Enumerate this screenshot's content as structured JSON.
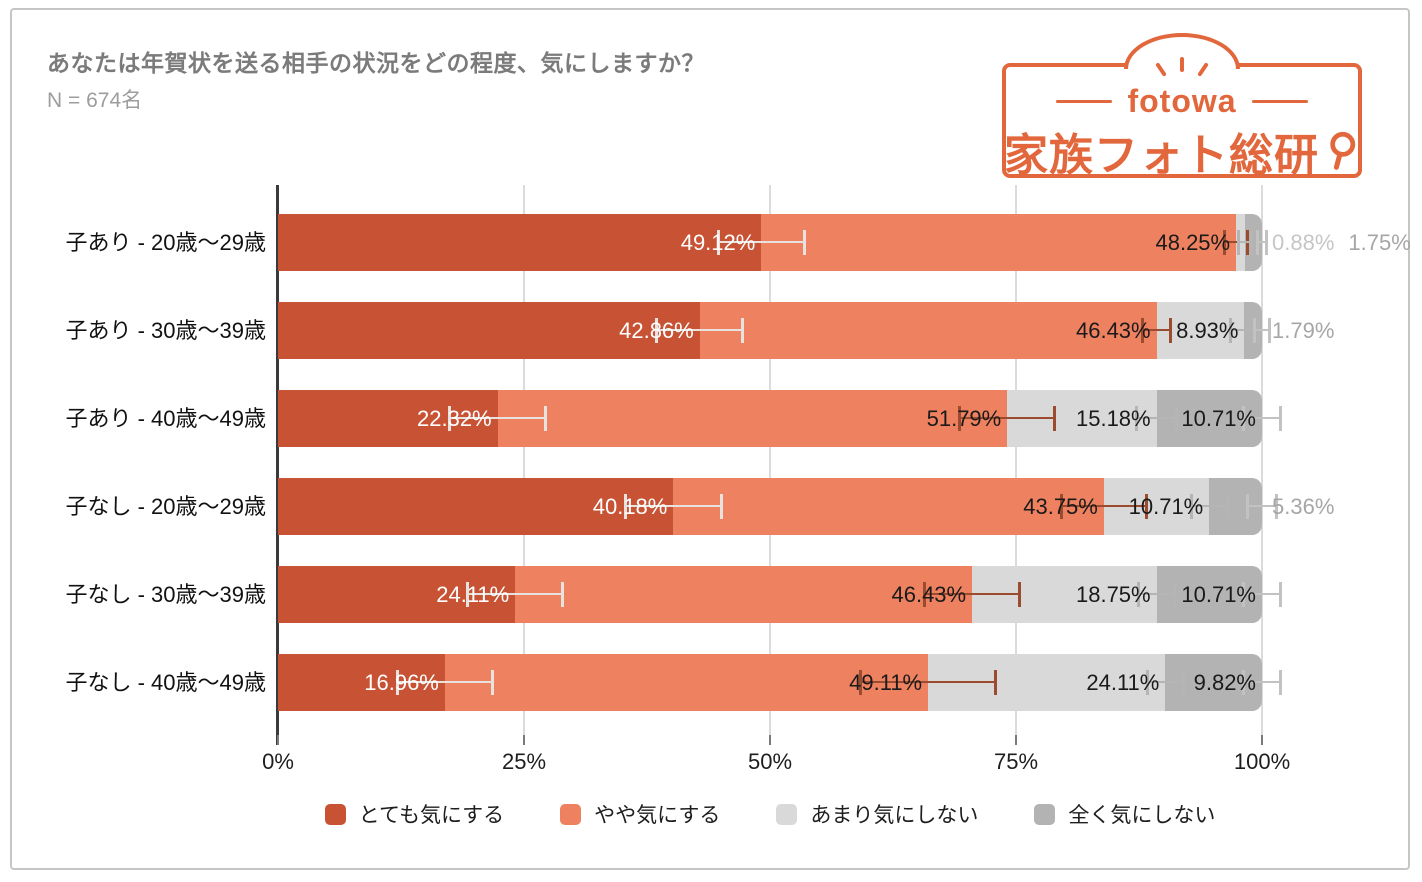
{
  "header": {
    "title": "あなたは年賀状を送る相手の状況をどの程度、気にしますか？",
    "sample_size": "N = 674名"
  },
  "logo": {
    "brand": "fotowa",
    "name": "家族フォト総研",
    "color": "#E2673C"
  },
  "chart_data": {
    "type": "bar",
    "orientation": "horizontal",
    "stacked": true,
    "title": "あなたは年賀状を送る相手の状況をどの程度、気にしますか？",
    "sample_note": "N = 674名",
    "xlim": [
      0,
      100
    ],
    "grid": true,
    "legend_position": "bottom",
    "value_label_suffix": "%",
    "inside_label_min_pct": 7,
    "x_ticks": [
      {
        "value": 0,
        "label": "0%"
      },
      {
        "value": 25,
        "label": "25%"
      },
      {
        "value": 50,
        "label": "50%"
      },
      {
        "value": 75,
        "label": "75%"
      },
      {
        "value": 100,
        "label": "100%"
      }
    ],
    "categories": [
      "子あり - 20歳〜29歳",
      "子あり - 30歳〜39歳",
      "子あり - 40歳〜49歳",
      "子なし - 20歳〜29歳",
      "子なし - 30歳〜39歳",
      "子なし - 40歳〜49歳"
    ],
    "series": [
      {
        "name": "とても気にする",
        "color": "#C85234",
        "label_color_inside": "#FFFFFF",
        "label_color_outside": "#A6A6A6",
        "error_color": "#E8E2DE",
        "values": [
          49.12,
          42.86,
          22.32,
          40.18,
          24.11,
          16.96
        ],
        "error_halfwidths": [
          4.5,
          4.5,
          5,
          5,
          5,
          5
        ]
      },
      {
        "name": "やや気にする",
        "color": "#EE8260",
        "label_color_inside": "#1A1A1A",
        "label_color_outside": "#A6A6A6",
        "error_color": "#9B4B2F",
        "values": [
          48.25,
          46.43,
          51.79,
          43.75,
          46.43,
          49.11
        ],
        "error_halfwidths": [
          1.3,
          1.6,
          5,
          4.5,
          5,
          7
        ]
      },
      {
        "name": "あまり気にしない",
        "color": "#D9D9D9",
        "label_color_inside": "#1A1A1A",
        "label_color_outside": "#C6C6C6",
        "error_color": "#B5B5B5",
        "values": [
          0.88,
          8.93,
          15.18,
          10.71,
          18.75,
          24.11
        ],
        "error_halfwidths": [
          0.8,
          1.6,
          2.2,
          2,
          2,
          2
        ]
      },
      {
        "name": "全く気にしない",
        "color": "#B3B3B3",
        "label_color_inside": "#1A1A1A",
        "label_color_outside": "#A6A6A6",
        "error_color": "#C2C2C2",
        "values": [
          1.75,
          1.79,
          10.71,
          5.36,
          10.71,
          9.82
        ],
        "error_halfwidths": [
          0.6,
          0.9,
          2,
          1.6,
          2,
          2
        ]
      }
    ]
  }
}
